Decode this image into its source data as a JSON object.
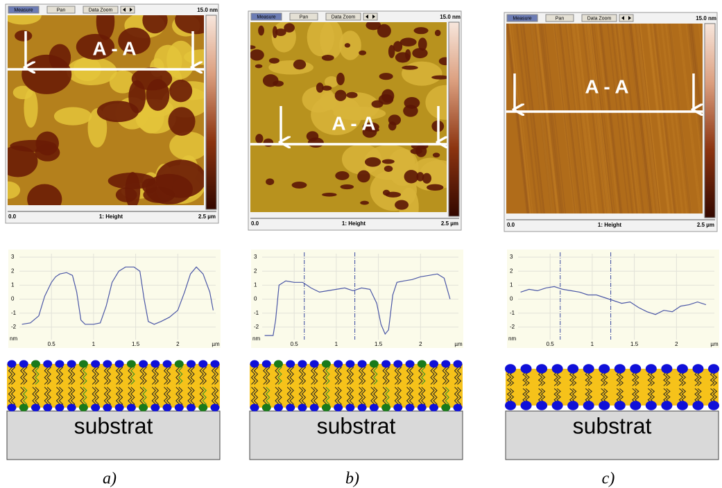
{
  "panels": [
    {
      "toolbar": [
        "Measure",
        "Pan",
        "Data Zoom"
      ],
      "scale_max": "15.0 nm",
      "section": "A - A",
      "x_start": "0.0",
      "channel": "1: Height",
      "x_end": "2.5 µm",
      "schematic_label": "substrat",
      "caption": "a)"
    },
    {
      "toolbar": [
        "Measure",
        "Pan",
        "Data Zoom"
      ],
      "scale_max": "15.0 nm",
      "section": "A - A",
      "x_start": "0.0",
      "channel": "1: Height",
      "x_end": "2.5 µm",
      "schematic_label": "substrat",
      "caption": "b)"
    },
    {
      "toolbar": [
        "Measure",
        "Pan",
        "Data Zoom"
      ],
      "scale_max": "15.0 nm",
      "section": "A - A",
      "x_start": "0.0",
      "channel": "1: Height",
      "x_end": "2.5 µm",
      "schematic_label": "substrat",
      "caption": "c)"
    }
  ],
  "chart_data": [
    {
      "type": "line",
      "x": [
        0.15,
        0.25,
        0.35,
        0.42,
        0.5,
        0.55,
        0.6,
        0.68,
        0.75,
        0.8,
        0.85,
        0.9,
        1.0,
        1.08,
        1.15,
        1.22,
        1.3,
        1.38,
        1.48,
        1.55,
        1.6,
        1.65,
        1.72,
        1.8,
        1.9,
        2.0,
        2.08,
        2.15,
        2.22,
        2.3,
        2.38,
        2.42
      ],
      "series": [
        {
          "color": "#4a56a6",
          "values": [
            -1.8,
            -1.7,
            -1.2,
            0.2,
            1.2,
            1.6,
            1.8,
            1.9,
            1.7,
            0.5,
            -1.5,
            -1.8,
            -1.8,
            -1.7,
            -0.5,
            1.2,
            2.0,
            2.3,
            2.3,
            2.0,
            0.0,
            -1.6,
            -1.8,
            -1.6,
            -1.3,
            -0.8,
            0.5,
            1.8,
            2.3,
            1.8,
            0.5,
            -0.8
          ]
        }
      ],
      "xlim": [
        0.12,
        2.45
      ],
      "ylim": [
        -2.9,
        3.25
      ],
      "xticks": [
        0.5,
        1,
        1.5,
        2
      ],
      "yticks": [
        -2,
        -1,
        0,
        1,
        2,
        3
      ],
      "x_unit": "µm",
      "y_unit": "nm",
      "cursors": []
    },
    {
      "type": "line",
      "x": [
        0.15,
        0.25,
        0.28,
        0.32,
        0.4,
        0.5,
        0.6,
        0.7,
        0.8,
        0.9,
        1.0,
        1.1,
        1.2,
        1.3,
        1.4,
        1.48,
        1.53,
        1.58,
        1.62,
        1.67,
        1.72,
        1.8,
        1.9,
        2.0,
        2.1,
        2.2,
        2.28,
        2.35
      ],
      "series": [
        {
          "color": "#4a56a6",
          "values": [
            -2.6,
            -2.6,
            -1.5,
            1.0,
            1.3,
            1.2,
            1.2,
            0.8,
            0.5,
            0.6,
            0.7,
            0.8,
            0.6,
            0.8,
            0.7,
            -0.3,
            -1.8,
            -2.5,
            -2.2,
            0.3,
            1.2,
            1.3,
            1.4,
            1.6,
            1.7,
            1.8,
            1.5,
            0.0
          ]
        }
      ],
      "xlim": [
        0.12,
        2.45
      ],
      "ylim": [
        -2.9,
        3.25
      ],
      "xticks": [
        0.5,
        1,
        1.5,
        2
      ],
      "yticks": [
        -2,
        -1,
        0,
        1,
        2,
        3
      ],
      "x_unit": "µm",
      "y_unit": "nm",
      "cursors": [
        0.62,
        1.22
      ]
    },
    {
      "type": "line",
      "x": [
        0.15,
        0.25,
        0.35,
        0.45,
        0.55,
        0.65,
        0.75,
        0.85,
        0.95,
        1.05,
        1.15,
        1.25,
        1.35,
        1.45,
        1.55,
        1.65,
        1.75,
        1.85,
        1.95,
        2.05,
        2.15,
        2.25,
        2.35
      ],
      "series": [
        {
          "color": "#4a56a6",
          "values": [
            0.5,
            0.7,
            0.6,
            0.8,
            0.9,
            0.7,
            0.6,
            0.5,
            0.3,
            0.3,
            0.1,
            -0.1,
            -0.3,
            -0.2,
            -0.6,
            -0.9,
            -1.1,
            -0.8,
            -0.9,
            -0.5,
            -0.4,
            -0.2,
            -0.4
          ]
        }
      ],
      "xlim": [
        0.12,
        2.45
      ],
      "ylim": [
        -2.9,
        3.25
      ],
      "xticks": [
        0.5,
        1,
        1.5,
        2
      ],
      "yticks": [
        -2,
        -1,
        0,
        1,
        2,
        3
      ],
      "x_unit": "µm",
      "y_unit": "nm",
      "cursors": [
        0.62,
        1.22
      ]
    }
  ]
}
